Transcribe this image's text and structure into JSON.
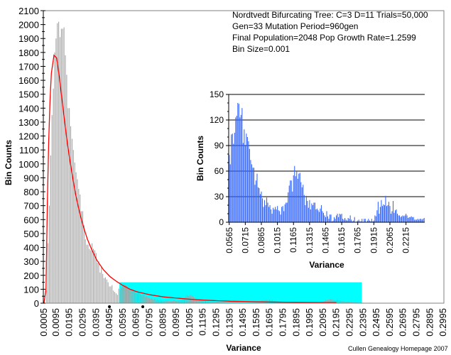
{
  "chart_data": [
    {
      "type": "bar",
      "name": "main-histogram",
      "title_lines": [
        "Nordtvedt Bifurcating Tree: C=3 D=11 Trials=50,000",
        "Gen=33 Mutation Period=960gen",
        "Final Population=2048 Pop Growth Rate=1.2599",
        "Bin Size=0.001"
      ],
      "xlabel": "Variance",
      "ylabel": "Bin Counts",
      "ylim": [
        0,
        2100
      ],
      "yticks": [
        0,
        100,
        200,
        300,
        400,
        500,
        600,
        700,
        800,
        900,
        1000,
        1100,
        1200,
        1300,
        1400,
        1500,
        1600,
        1700,
        1800,
        1900,
        2000,
        2100
      ],
      "xlim": [
        0.0,
        0.3
      ],
      "xtick_labels": [
        "0.0005",
        "0.0095",
        "0.0195",
        "0.0295",
        "0.0395",
        "0.0495",
        "0.0595",
        "0.0695",
        "0.0795",
        "0.0895",
        "0.0995",
        "0.1095",
        "0.1195",
        "0.1295",
        "0.1395",
        "0.1495",
        "0.1595",
        "0.1695",
        "0.1795",
        "0.1895",
        "0.1995",
        "0.2095",
        "0.2195",
        "0.2295",
        "0.2395",
        "0.2495",
        "0.2595",
        "0.2695",
        "0.2795",
        "0.2895",
        "0.2995"
      ],
      "bar_color": "#a0a0a0",
      "bins_start": 0.0005,
      "bin_size": 0.001,
      "values": [
        0,
        0,
        90,
        430,
        700,
        1060,
        1350,
        1540,
        1800,
        1900,
        2010,
        2020,
        1910,
        1970,
        1970,
        1980,
        1780,
        1640,
        1400,
        1400,
        1270,
        1180,
        1100,
        1010,
        940,
        890,
        820,
        780,
        660,
        660,
        560,
        460,
        420,
        420,
        390,
        380,
        430,
        390,
        380,
        360,
        290,
        300,
        220,
        260,
        210,
        180,
        185,
        170,
        150,
        120,
        120,
        130,
        90,
        80,
        70,
        60,
        105,
        95,
        110,
        120,
        135,
        130,
        125,
        110,
        100,
        95,
        100,
        90,
        85,
        75,
        70,
        80,
        65,
        55,
        60,
        60,
        45,
        50,
        40,
        35,
        30,
        35,
        25,
        30,
        20,
        25,
        20,
        25,
        20,
        18,
        15,
        20,
        18,
        20,
        15,
        12,
        15,
        20,
        18,
        15,
        15,
        18,
        20,
        22,
        30,
        40,
        45,
        60,
        50,
        55,
        60,
        50,
        45,
        35,
        30,
        25,
        20,
        25,
        18,
        15,
        12,
        15,
        10,
        10,
        8,
        7,
        8,
        6,
        8,
        7,
        10,
        8,
        6,
        7,
        5,
        6,
        5,
        4,
        5,
        4,
        3,
        5,
        3,
        4,
        3,
        4,
        3,
        3,
        2,
        3,
        2,
        4,
        3,
        5,
        3,
        4,
        5,
        6,
        7,
        8,
        10,
        12,
        15,
        18,
        20,
        18,
        22,
        25,
        20,
        25,
        18,
        22,
        15,
        18,
        12,
        14,
        10,
        12,
        8,
        10,
        8,
        6,
        8,
        7,
        5,
        6,
        5,
        4,
        3,
        5,
        3,
        4,
        3,
        3,
        2,
        3,
        2,
        3,
        2,
        2,
        2,
        3,
        2,
        3,
        4,
        5,
        6,
        8,
        10,
        12,
        15,
        18,
        22,
        25,
        28,
        30,
        25,
        22,
        20,
        22,
        25,
        20,
        18,
        15,
        15,
        12,
        10,
        12,
        10,
        8,
        7,
        6,
        5,
        6,
        5,
        4,
        3,
        3,
        4,
        3,
        2,
        3,
        2,
        2,
        3,
        2,
        2,
        2,
        1,
        1,
        2,
        1,
        1,
        0,
        1,
        0,
        0
      ],
      "highlight_region": {
        "x_from": 0.057,
        "x_to": 0.2385,
        "y_to": 150,
        "color": "#00ffff"
      },
      "fit_curve": {
        "color": "#ff0000",
        "x": [
          0.0005,
          0.002,
          0.003,
          0.004,
          0.005,
          0.006,
          0.008,
          0.01,
          0.012,
          0.014,
          0.016,
          0.018,
          0.02,
          0.022,
          0.024,
          0.026,
          0.028,
          0.03,
          0.033,
          0.036,
          0.04,
          0.045,
          0.05,
          0.055,
          0.06,
          0.065,
          0.07,
          0.08,
          0.09,
          0.1,
          0.11,
          0.12,
          0.13,
          0.14,
          0.15,
          0.16,
          0.17,
          0.18,
          0.19,
          0.2,
          0.21,
          0.2195
        ],
        "y": [
          0,
          100,
          700,
          1150,
          1450,
          1650,
          1780,
          1760,
          1620,
          1460,
          1300,
          1150,
          1020,
          900,
          790,
          700,
          620,
          550,
          460,
          390,
          310,
          240,
          190,
          155,
          125,
          100,
          82,
          60,
          45,
          36,
          28,
          22,
          18,
          14,
          12,
          10,
          8,
          7,
          6,
          5,
          4,
          4
        ]
      },
      "markers": [
        {
          "x": 0.0495,
          "shape": "dot"
        },
        {
          "x": 0.0745,
          "shape": "dot"
        }
      ]
    },
    {
      "type": "bar",
      "name": "inset-histogram",
      "xlabel": "Variance",
      "ylabel": "Bin Counts",
      "ylim": [
        0,
        150
      ],
      "yticks": [
        0,
        30,
        60,
        90,
        120,
        150
      ],
      "grid": true,
      "xtick_labels": [
        "0.0565",
        "0.0715",
        "0.0865",
        "0.1015",
        "0.1165",
        "0.1315",
        "0.1465",
        "0.1615",
        "0.1765",
        "0.1915",
        "0.2065",
        "0.2215"
      ],
      "bar_color": "#3366ff",
      "bins_start": 0.0565,
      "bin_size": 0.001,
      "values": [
        79,
        68,
        103,
        104,
        92,
        105,
        123,
        125,
        140,
        139,
        123,
        126,
        134,
        93,
        109,
        90,
        104,
        100,
        95,
        86,
        73,
        68,
        64,
        64,
        44,
        49,
        57,
        41,
        40,
        33,
        36,
        28,
        18,
        26,
        20,
        29,
        23,
        18,
        20,
        15,
        10,
        17,
        15,
        18,
        15,
        19,
        14,
        13,
        9,
        18,
        19,
        13,
        21,
        23,
        23,
        35,
        43,
        49,
        49,
        36,
        55,
        66,
        54,
        60,
        51,
        57,
        58,
        47,
        41,
        44,
        32,
        20,
        31,
        25,
        17,
        26,
        15,
        22,
        20,
        23,
        23,
        15,
        16,
        14,
        12,
        16,
        20,
        13,
        11,
        8,
        6,
        13,
        7,
        4,
        9,
        9,
        1,
        2,
        6,
        4,
        8,
        10,
        6,
        10,
        9,
        10,
        4,
        3,
        5,
        3,
        2,
        5,
        4,
        8,
        3,
        1,
        2,
        6,
        0,
        1,
        2,
        3,
        1,
        1,
        4,
        0,
        4,
        4,
        0,
        2,
        4,
        2,
        1,
        4,
        1,
        2,
        8,
        7,
        14,
        24,
        10,
        18,
        26,
        19,
        21,
        20,
        31,
        19,
        20,
        24,
        19,
        10,
        13,
        25,
        11,
        14,
        15,
        10,
        8,
        8,
        6,
        7,
        8,
        7,
        8,
        10,
        8,
        5,
        6,
        6,
        7,
        6,
        6,
        3,
        3,
        3,
        4,
        3,
        4,
        4,
        3,
        4,
        5
      ]
    }
  ],
  "credit": "Cullen Genealogy Homepage 2007"
}
